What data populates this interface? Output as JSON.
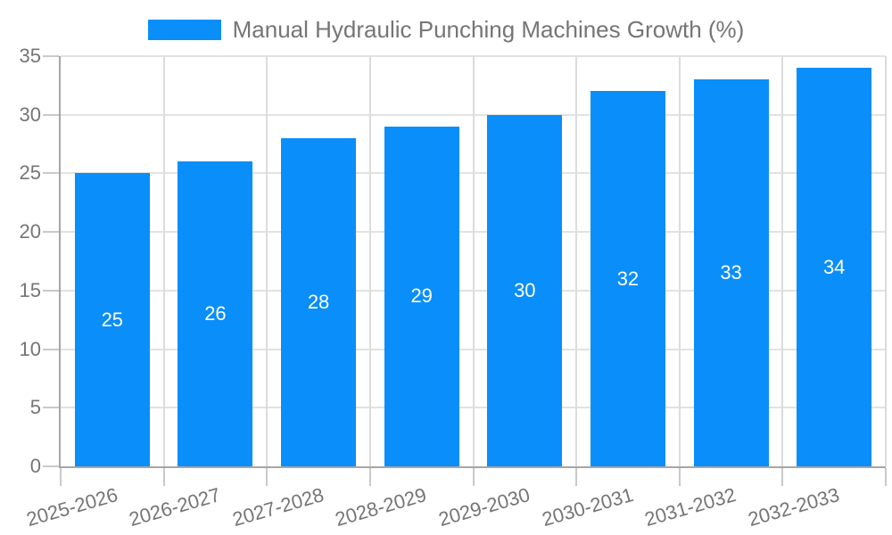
{
  "legend": {
    "label": "Manual Hydraulic Punching Machines Growth (%)"
  },
  "chart_data": {
    "type": "bar",
    "title": "Manual Hydraulic Punching Machines Growth (%)",
    "categories": [
      "2025-2026",
      "2026-2027",
      "2027-2028",
      "2028-2029",
      "2029-2030",
      "2030-2031",
      "2031-2032",
      "2032-2033"
    ],
    "values": [
      25,
      26,
      28,
      29,
      30,
      32,
      33,
      34
    ],
    "xlabel": "",
    "ylabel": "",
    "ylim": [
      0,
      35
    ],
    "yticks": [
      0,
      5,
      10,
      15,
      20,
      25,
      30,
      35
    ],
    "grid": true,
    "legend_position": "top",
    "value_labels": "inside-middle",
    "x_label_rotation_deg": -16,
    "colors": {
      "bar": "#0a8ef9",
      "value_label": "#ffffff",
      "axis_text": "#757575",
      "axis_line": "#a6a6a6",
      "gridline": "#e2e2e2",
      "tick": "#c9c9c9",
      "background": "#ffffff"
    }
  }
}
